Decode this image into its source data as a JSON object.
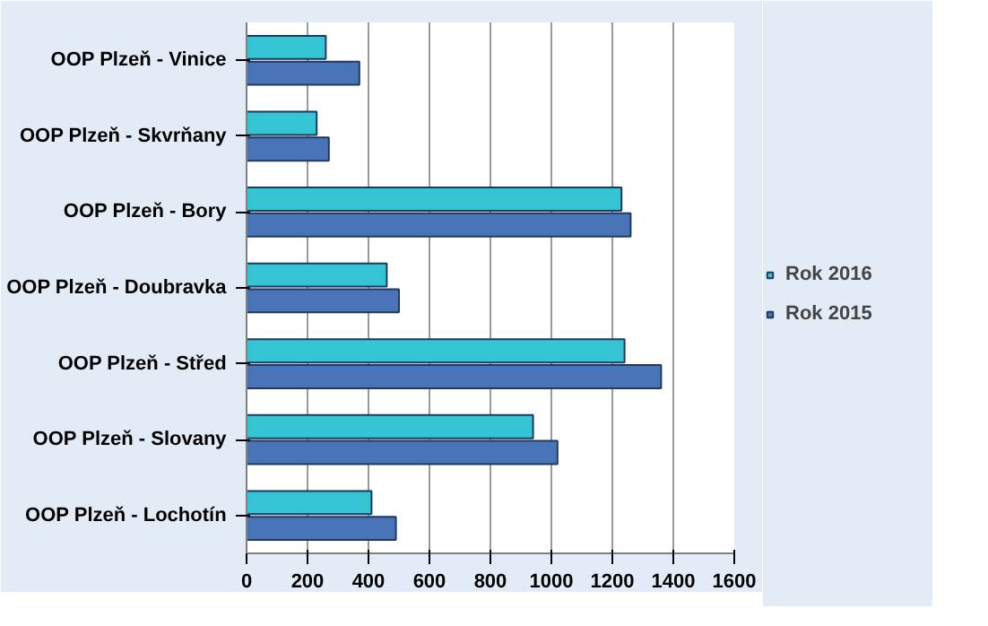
{
  "chart_data": {
    "type": "bar",
    "orientation": "horizontal",
    "categories": [
      "OOP Plzeň - Vinice",
      "OOP Plzeň - Skvrňany",
      "OOP Plzeň - Bory",
      "OOP Plzeň - Doubravka",
      "OOP Plzeň - Střed",
      "OOP Plzeň - Slovany",
      "OOP Plzeň - Lochotín"
    ],
    "series": [
      {
        "name": "Rok 2016",
        "color": "#35c4d4",
        "values": [
          260,
          230,
          1230,
          460,
          1240,
          940,
          410
        ]
      },
      {
        "name": "Rok 2015",
        "color": "#4a74b8",
        "values": [
          370,
          270,
          1260,
          500,
          1360,
          1020,
          490
        ]
      }
    ],
    "xlim": [
      0,
      1600
    ],
    "xticks": [
      0,
      200,
      400,
      600,
      800,
      1000,
      1200,
      1400,
      1600
    ],
    "grid": "x",
    "legend": "right"
  }
}
